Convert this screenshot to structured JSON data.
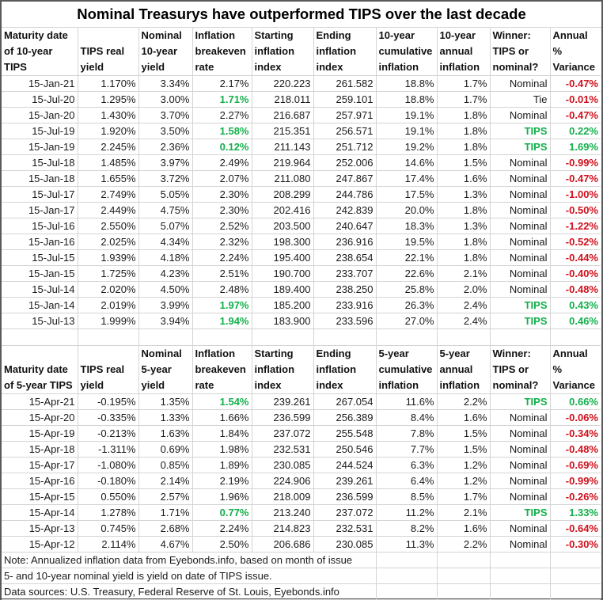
{
  "title": "Nominal Treasurys have outperformed TIPS over the last decade",
  "colors": {
    "positive": "#13b04b",
    "negative": "#d0101b"
  },
  "table10": {
    "headers": [
      "Maturity date\nof 10-year\nTIPS",
      "TIPS real\nyield",
      "Nominal\n10-year\nyield",
      "Inflation\nbreakeven\nrate",
      "Starting\ninflation\nindex",
      "Ending\ninflation\nindex",
      "10-year\ncumulative\ninflation",
      "10-year\nannual\ninflation",
      "Winner:\nTIPS or\nnominal?",
      "Annual %\nVariance"
    ],
    "rows": [
      {
        "date": "15-Jan-21",
        "real": "1.170%",
        "nominal": "3.34%",
        "breakeven": "2.17%",
        "be_hl": false,
        "start": "220.223",
        "end": "261.582",
        "cum": "18.8%",
        "annual": "1.7%",
        "winner": "Nominal",
        "variance": "-0.47%"
      },
      {
        "date": "15-Jul-20",
        "real": "1.295%",
        "nominal": "3.00%",
        "breakeven": "1.71%",
        "be_hl": true,
        "start": "218.011",
        "end": "259.101",
        "cum": "18.8%",
        "annual": "1.7%",
        "winner": "Tie",
        "variance": "-0.01%"
      },
      {
        "date": "15-Jan-20",
        "real": "1.430%",
        "nominal": "3.70%",
        "breakeven": "2.27%",
        "be_hl": false,
        "start": "216.687",
        "end": "257.971",
        "cum": "19.1%",
        "annual": "1.8%",
        "winner": "Nominal",
        "variance": "-0.47%"
      },
      {
        "date": "15-Jul-19",
        "real": "1.920%",
        "nominal": "3.50%",
        "breakeven": "1.58%",
        "be_hl": true,
        "start": "215.351",
        "end": "256.571",
        "cum": "19.1%",
        "annual": "1.8%",
        "winner": "TIPS",
        "variance": "0.22%"
      },
      {
        "date": "15-Jan-19",
        "real": "2.245%",
        "nominal": "2.36%",
        "breakeven": "0.12%",
        "be_hl": true,
        "start": "211.143",
        "end": "251.712",
        "cum": "19.2%",
        "annual": "1.8%",
        "winner": "TIPS",
        "variance": "1.69%"
      },
      {
        "date": "15-Jul-18",
        "real": "1.485%",
        "nominal": "3.97%",
        "breakeven": "2.49%",
        "be_hl": false,
        "start": "219.964",
        "end": "252.006",
        "cum": "14.6%",
        "annual": "1.5%",
        "winner": "Nominal",
        "variance": "-0.99%"
      },
      {
        "date": "15-Jan-18",
        "real": "1.655%",
        "nominal": "3.72%",
        "breakeven": "2.07%",
        "be_hl": false,
        "start": "211.080",
        "end": "247.867",
        "cum": "17.4%",
        "annual": "1.6%",
        "winner": "Nominal",
        "variance": "-0.47%"
      },
      {
        "date": "15-Jul-17",
        "real": "2.749%",
        "nominal": "5.05%",
        "breakeven": "2.30%",
        "be_hl": false,
        "start": "208.299",
        "end": "244.786",
        "cum": "17.5%",
        "annual": "1.3%",
        "winner": "Nominal",
        "variance": "-1.00%"
      },
      {
        "date": "15-Jan-17",
        "real": "2.449%",
        "nominal": "4.75%",
        "breakeven": "2.30%",
        "be_hl": false,
        "start": "202.416",
        "end": "242.839",
        "cum": "20.0%",
        "annual": "1.8%",
        "winner": "Nominal",
        "variance": "-0.50%"
      },
      {
        "date": "15-Jul-16",
        "real": "2.550%",
        "nominal": "5.07%",
        "breakeven": "2.52%",
        "be_hl": false,
        "start": "203.500",
        "end": "240.647",
        "cum": "18.3%",
        "annual": "1.3%",
        "winner": "Nominal",
        "variance": "-1.22%"
      },
      {
        "date": "15-Jan-16",
        "real": "2.025%",
        "nominal": "4.34%",
        "breakeven": "2.32%",
        "be_hl": false,
        "start": "198.300",
        "end": "236.916",
        "cum": "19.5%",
        "annual": "1.8%",
        "winner": "Nominal",
        "variance": "-0.52%"
      },
      {
        "date": "15-Jul-15",
        "real": "1.939%",
        "nominal": "4.18%",
        "breakeven": "2.24%",
        "be_hl": false,
        "start": "195.400",
        "end": "238.654",
        "cum": "22.1%",
        "annual": "1.8%",
        "winner": "Nominal",
        "variance": "-0.44%"
      },
      {
        "date": "15-Jan-15",
        "real": "1.725%",
        "nominal": "4.23%",
        "breakeven": "2.51%",
        "be_hl": false,
        "start": "190.700",
        "end": "233.707",
        "cum": "22.6%",
        "annual": "2.1%",
        "winner": "Nominal",
        "variance": "-0.40%"
      },
      {
        "date": "15-Jul-14",
        "real": "2.020%",
        "nominal": "4.50%",
        "breakeven": "2.48%",
        "be_hl": false,
        "start": "189.400",
        "end": "238.250",
        "cum": "25.8%",
        "annual": "2.0%",
        "winner": "Nominal",
        "variance": "-0.48%"
      },
      {
        "date": "15-Jan-14",
        "real": "2.019%",
        "nominal": "3.99%",
        "breakeven": "1.97%",
        "be_hl": true,
        "start": "185.200",
        "end": "233.916",
        "cum": "26.3%",
        "annual": "2.4%",
        "winner": "TIPS",
        "variance": "0.43%"
      },
      {
        "date": "15-Jul-13",
        "real": "1.999%",
        "nominal": "3.94%",
        "breakeven": "1.94%",
        "be_hl": true,
        "start": "183.900",
        "end": "233.596",
        "cum": "27.0%",
        "annual": "2.4%",
        "winner": "TIPS",
        "variance": "0.46%"
      }
    ]
  },
  "table5": {
    "headers": [
      "Maturity date\nof 5-year TIPS",
      "TIPS real\nyield",
      "Nominal\n5-year\nyield",
      "Inflation\nbreakeven\nrate",
      "Starting\ninflation\nindex",
      "Ending\ninflation\nindex",
      "5-year\ncumulative\ninflation",
      "5-year\nannual\ninflation",
      "Winner:\nTIPS or\nnominal?",
      "Annual %\nVariance"
    ],
    "rows": [
      {
        "date": "15-Apr-21",
        "real": "-0.195%",
        "nominal": "1.35%",
        "breakeven": "1.54%",
        "be_hl": true,
        "start": "239.261",
        "end": "267.054",
        "cum": "11.6%",
        "annual": "2.2%",
        "winner": "TIPS",
        "variance": "0.66%"
      },
      {
        "date": "15-Apr-20",
        "real": "-0.335%",
        "nominal": "1.33%",
        "breakeven": "1.66%",
        "be_hl": false,
        "start": "236.599",
        "end": "256.389",
        "cum": "8.4%",
        "annual": "1.6%",
        "winner": "Nominal",
        "variance": "-0.06%"
      },
      {
        "date": "15-Apr-19",
        "real": "-0.213%",
        "nominal": "1.63%",
        "breakeven": "1.84%",
        "be_hl": false,
        "start": "237.072",
        "end": "255.548",
        "cum": "7.8%",
        "annual": "1.5%",
        "winner": "Nominal",
        "variance": "-0.34%"
      },
      {
        "date": "15-Apr-18",
        "real": "-1.311%",
        "nominal": "0.69%",
        "breakeven": "1.98%",
        "be_hl": false,
        "start": "232.531",
        "end": "250.546",
        "cum": "7.7%",
        "annual": "1.5%",
        "winner": "Nominal",
        "variance": "-0.48%"
      },
      {
        "date": "15-Apr-17",
        "real": "-1.080%",
        "nominal": "0.85%",
        "breakeven": "1.89%",
        "be_hl": false,
        "start": "230.085",
        "end": "244.524",
        "cum": "6.3%",
        "annual": "1.2%",
        "winner": "Nominal",
        "variance": "-0.69%"
      },
      {
        "date": "15-Apr-16",
        "real": "-0.180%",
        "nominal": "2.14%",
        "breakeven": "2.19%",
        "be_hl": false,
        "start": "224.906",
        "end": "239.261",
        "cum": "6.4%",
        "annual": "1.2%",
        "winner": "Nominal",
        "variance": "-0.99%"
      },
      {
        "date": "15-Apr-15",
        "real": "0.550%",
        "nominal": "2.57%",
        "breakeven": "1.96%",
        "be_hl": false,
        "start": "218.009",
        "end": "236.599",
        "cum": "8.5%",
        "annual": "1.7%",
        "winner": "Nominal",
        "variance": "-0.26%"
      },
      {
        "date": "15-Apr-14",
        "real": "1.278%",
        "nominal": "1.71%",
        "breakeven": "0.77%",
        "be_hl": true,
        "start": "213.240",
        "end": "237.072",
        "cum": "11.2%",
        "annual": "2.1%",
        "winner": "TIPS",
        "variance": "1.33%"
      },
      {
        "date": "15-Apr-13",
        "real": "0.745%",
        "nominal": "2.68%",
        "breakeven": "2.24%",
        "be_hl": false,
        "start": "214.823",
        "end": "232.531",
        "cum": "8.2%",
        "annual": "1.6%",
        "winner": "Nominal",
        "variance": "-0.64%"
      },
      {
        "date": "15-Apr-12",
        "real": "2.114%",
        "nominal": "4.67%",
        "breakeven": "2.50%",
        "be_hl": false,
        "start": "206.686",
        "end": "230.085",
        "cum": "11.3%",
        "annual": "2.2%",
        "winner": "Nominal",
        "variance": "-0.30%"
      }
    ]
  },
  "notes": [
    "Note: Annualized inflation data from Eyebonds.info, based on month of issue",
    "5- and 10-year nominal yield is yield on date of TIPS issue.",
    "Data sources: U.S. Treasury, Federal Reserve of St. Louis, Eyebonds.info"
  ]
}
